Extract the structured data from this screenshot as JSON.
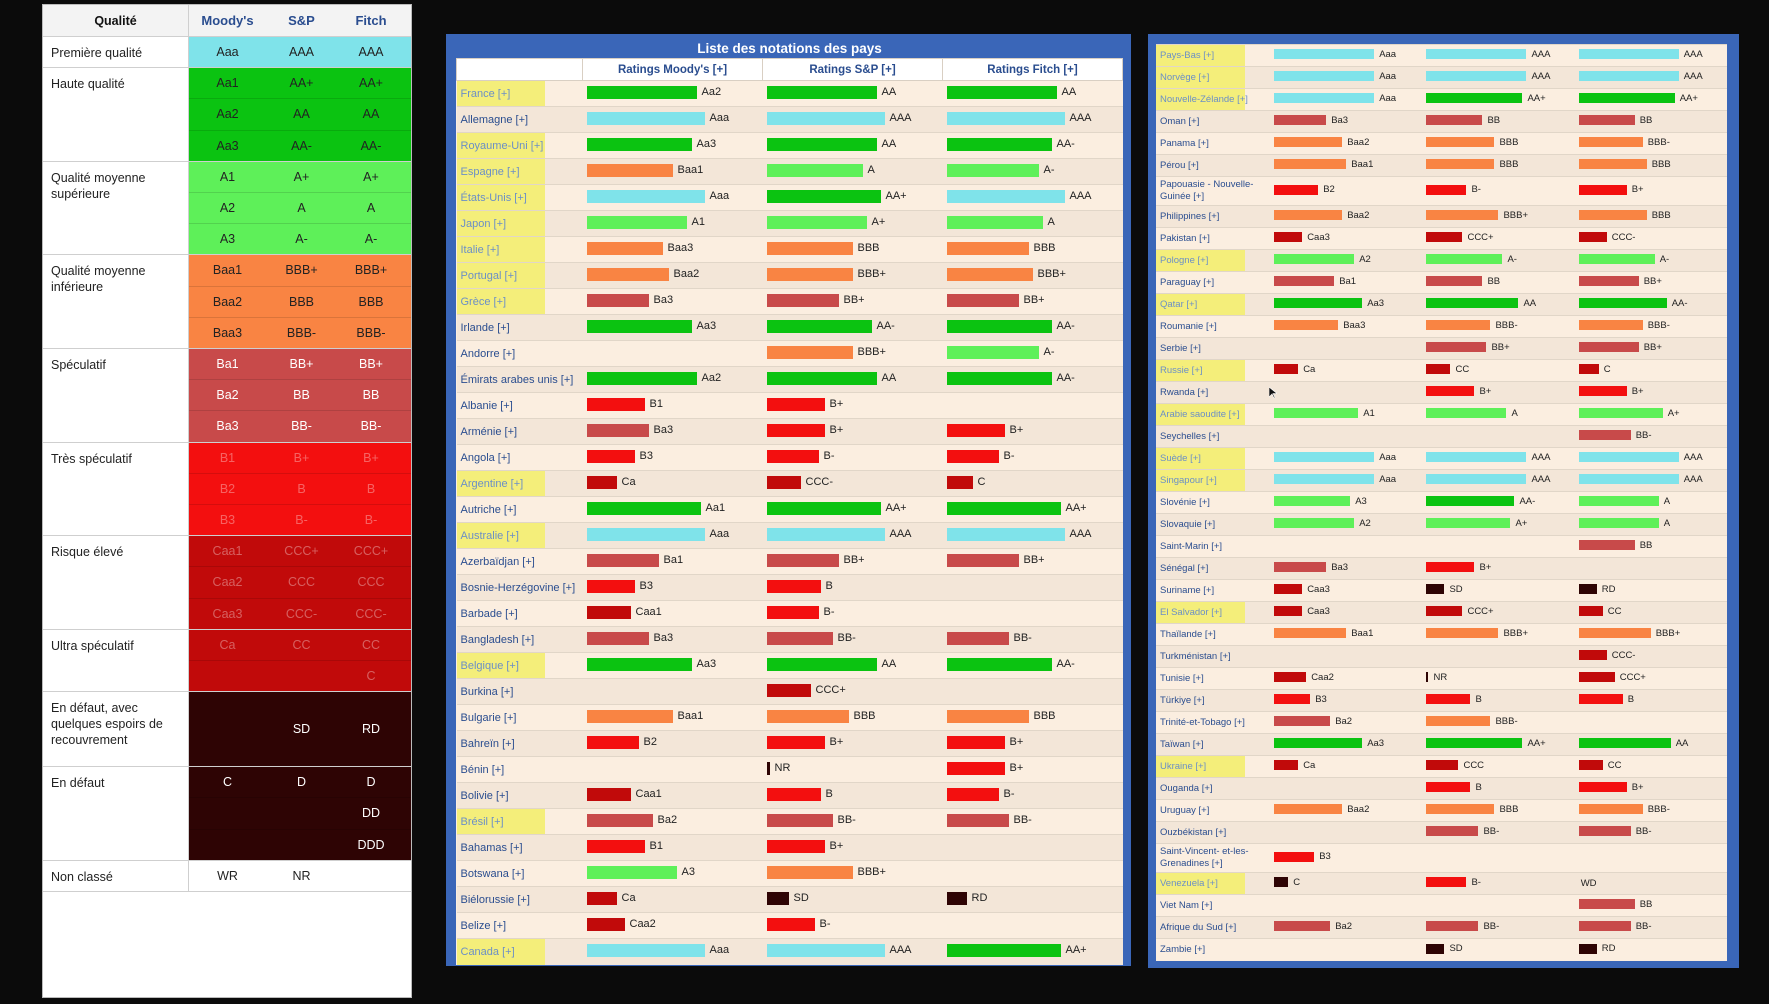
{
  "colors": {
    "aaa": "#7fe3ea",
    "aa": "#0bc311",
    "a": "#5ef059",
    "bbb": "#f98443",
    "bb": "#c84a4a",
    "b": "#f30f0f",
    "ccc": "#c10a0a",
    "sd": "#2e0404",
    "empty": ""
  },
  "legend": {
    "headers": [
      "Qualité",
      "Moody's",
      "S&P",
      "Fitch"
    ],
    "groups": [
      {
        "label": "Première qualité",
        "rows": [
          [
            "Aaa",
            "AAA",
            "AAA",
            "aaa",
            "d"
          ]
        ]
      },
      {
        "label": "Haute qualité",
        "rows": [
          [
            "Aa1",
            "AA+",
            "AA+",
            "aa",
            "d"
          ],
          [
            "Aa2",
            "AA",
            "AA",
            "aa",
            "d"
          ],
          [
            "Aa3",
            "AA-",
            "AA-",
            "aa",
            "d"
          ]
        ]
      },
      {
        "label": "Qualité moyenne supérieure",
        "rows": [
          [
            "A1",
            "A+",
            "A+",
            "a",
            "d"
          ],
          [
            "A2",
            "A",
            "A",
            "a",
            "d"
          ],
          [
            "A3",
            "A-",
            "A-",
            "a",
            "d"
          ]
        ]
      },
      {
        "label": "Qualité moyenne inférieure",
        "rows": [
          [
            "Baa1",
            "BBB+",
            "BBB+",
            "bbb",
            "d"
          ],
          [
            "Baa2",
            "BBB",
            "BBB",
            "bbb",
            "d"
          ],
          [
            "Baa3",
            "BBB-",
            "BBB-",
            "bbb",
            "d"
          ]
        ]
      },
      {
        "label": "Spéculatif",
        "rows": [
          [
            "Ba1",
            "BB+",
            "BB+",
            "bb",
            "l"
          ],
          [
            "Ba2",
            "BB",
            "BB",
            "bb",
            "l"
          ],
          [
            "Ba3",
            "BB-",
            "BB-",
            "bb",
            "l"
          ]
        ]
      },
      {
        "label": "Très spéculatif",
        "rows": [
          [
            "B1",
            "B+",
            "B+",
            "b",
            "f"
          ],
          [
            "B2",
            "B",
            "B",
            "b",
            "f"
          ],
          [
            "B3",
            "B-",
            "B-",
            "b",
            "f"
          ]
        ]
      },
      {
        "label": "Risque élevé",
        "rows": [
          [
            "Caa1",
            "CCC+",
            "CCC+",
            "ccc",
            "f"
          ],
          [
            "Caa2",
            "CCC",
            "CCC",
            "ccc",
            "f"
          ],
          [
            "Caa3",
            "CCC-",
            "CCC-",
            "ccc",
            "f"
          ]
        ]
      },
      {
        "label": "Ultra spéculatif",
        "rows": [
          [
            "Ca",
            "CC",
            "CC",
            "ccc",
            "f"
          ],
          [
            "",
            "",
            "C",
            "ccc",
            "f"
          ]
        ]
      },
      {
        "label": "En défaut, avec quelques espoirs de recouvrement",
        "rows": [
          [
            "",
            "SD",
            "RD",
            "sd",
            "l"
          ]
        ]
      },
      {
        "label": "En défaut",
        "rows": [
          [
            "C",
            "D",
            "D",
            "sd",
            "l"
          ],
          [
            "",
            "",
            "DD",
            "sd",
            "l"
          ],
          [
            "",
            "",
            "DDD",
            "sd",
            "l"
          ]
        ]
      },
      {
        "label": "Non classé",
        "rows": [
          [
            "WR",
            "NR",
            "",
            "white",
            "k"
          ]
        ]
      }
    ]
  },
  "mid": {
    "title": "Liste des notations des pays",
    "headers": [
      "",
      "Ratings Moody's [+]",
      "Ratings S&P [+]",
      "Ratings Fitch [+]"
    ],
    "rows": [
      [
        "France [+]",
        1,
        "Aa2",
        "aa",
        110,
        "AA",
        "aa",
        110,
        "AA",
        "aa",
        110
      ],
      [
        "Allemagne [+]",
        0,
        "Aaa",
        "aaa",
        118,
        "AAA",
        "aaa",
        118,
        "AAA",
        "aaa",
        118
      ],
      [
        "Royaume-Uni [+]",
        1,
        "Aa3",
        "aa",
        105,
        "AA",
        "aa",
        110,
        "AA-",
        "aa",
        105
      ],
      [
        "Espagne [+]",
        1,
        "Baa1",
        "bbb",
        86,
        "A",
        "a",
        96,
        "A-",
        "a",
        92
      ],
      [
        "États-Unis [+]",
        1,
        "Aaa",
        "aaa",
        118,
        "AA+",
        "aa",
        114,
        "AAA",
        "aaa",
        118
      ],
      [
        "Japon [+]",
        1,
        "A1",
        "a",
        100,
        "A+",
        "a",
        100,
        "A",
        "a",
        96
      ],
      [
        "Italie [+]",
        1,
        "Baa3",
        "bbb",
        76,
        "BBB",
        "bbb",
        86,
        "BBB",
        "bbb",
        82
      ],
      [
        "Portugal [+]",
        1,
        "Baa2",
        "bbb",
        82,
        "BBB+",
        "bbb",
        86,
        "BBB+",
        "bbb",
        86
      ],
      [
        "Grèce [+]",
        1,
        "Ba3",
        "bb",
        62,
        "BB+",
        "bb",
        72,
        "BB+",
        "bb",
        72
      ],
      [
        "Irlande [+]",
        0,
        "Aa3",
        "aa",
        105,
        "AA-",
        "aa",
        105,
        "AA-",
        "aa",
        105
      ],
      [
        "Andorre [+]",
        0,
        "",
        "empty",
        0,
        "BBB+",
        "bbb",
        86,
        "A-",
        "a",
        92
      ],
      [
        "Émirats arabes unis [+]",
        0,
        "Aa2",
        "aa",
        110,
        "AA",
        "aa",
        110,
        "AA-",
        "aa",
        105
      ],
      [
        "Albanie [+]",
        0,
        "B1",
        "b",
        58,
        "B+",
        "b",
        58,
        "",
        "empty",
        0
      ],
      [
        "Arménie [+]",
        0,
        "Ba3",
        "bb",
        62,
        "B+",
        "b",
        58,
        "B+",
        "b",
        58
      ],
      [
        "Angola [+]",
        0,
        "B3",
        "b",
        48,
        "B-",
        "b",
        52,
        "B-",
        "b",
        52
      ],
      [
        "Argentine [+]",
        1,
        "Ca",
        "ccc",
        30,
        "CCC-",
        "ccc",
        34,
        "C",
        "ccc",
        26
      ],
      [
        "Autriche [+]",
        0,
        "Aa1",
        "aa",
        114,
        "AA+",
        "aa",
        114,
        "AA+",
        "aa",
        114
      ],
      [
        "Australie [+]",
        1,
        "Aaa",
        "aaa",
        118,
        "AAA",
        "aaa",
        118,
        "AAA",
        "aaa",
        118
      ],
      [
        "Azerbaïdjan [+]",
        0,
        "Ba1",
        "bb",
        72,
        "BB+",
        "bb",
        72,
        "BB+",
        "bb",
        72
      ],
      [
        "Bosnie-Herzégovine [+]",
        0,
        "B3",
        "b",
        48,
        "B",
        "b",
        54,
        "",
        "empty",
        0
      ],
      [
        "Barbade [+]",
        0,
        "Caa1",
        "ccc",
        44,
        "B-",
        "b",
        52,
        "",
        "empty",
        0
      ],
      [
        "Bangladesh [+]",
        0,
        "Ba3",
        "bb",
        62,
        "BB-",
        "bb",
        66,
        "BB-",
        "bb",
        62
      ],
      [
        "Belgique [+]",
        1,
        "Aa3",
        "aa",
        105,
        "AA",
        "aa",
        110,
        "AA-",
        "aa",
        105
      ],
      [
        "Burkina [+]",
        0,
        "",
        "empty",
        0,
        "CCC+",
        "ccc",
        44,
        "",
        "empty",
        0
      ],
      [
        "Bulgarie [+]",
        0,
        "Baa1",
        "bbb",
        86,
        "BBB",
        "bbb",
        82,
        "BBB",
        "bbb",
        82
      ],
      [
        "Bahreïn [+]",
        0,
        "B2",
        "b",
        52,
        "B+",
        "b",
        58,
        "B+",
        "b",
        58
      ],
      [
        "Bénin [+]",
        0,
        "",
        "empty",
        0,
        "NR",
        "sd",
        3,
        "B+",
        "b",
        58
      ],
      [
        "Bolivie [+]",
        0,
        "Caa1",
        "ccc",
        44,
        "B",
        "b",
        54,
        "B-",
        "b",
        52
      ],
      [
        "Brésil [+]",
        1,
        "Ba2",
        "bb",
        66,
        "BB-",
        "bb",
        66,
        "BB-",
        "bb",
        62
      ],
      [
        "Bahamas [+]",
        0,
        "B1",
        "b",
        58,
        "B+",
        "b",
        58,
        "",
        "empty",
        0
      ],
      [
        "Botswana [+]",
        0,
        "A3",
        "a",
        90,
        "BBB+",
        "bbb",
        86,
        "",
        "empty",
        0
      ],
      [
        "Biélorussie [+]",
        0,
        "Ca",
        "ccc",
        30,
        "SD",
        "sd",
        22,
        "RD",
        "sd",
        20
      ],
      [
        "Belize [+]",
        0,
        "Caa2",
        "ccc",
        38,
        "B-",
        "b",
        48,
        "",
        "empty",
        0
      ],
      [
        "Canada [+]",
        1,
        "Aaa",
        "aaa",
        118,
        "AAA",
        "aaa",
        118,
        "AA+",
        "aa",
        114
      ]
    ]
  },
  "right": {
    "rows": [
      [
        "Pays-Bas [+]",
        1,
        "Aaa",
        "aaa",
        100,
        "AAA",
        "aaa",
        100,
        "AAA",
        "aaa",
        100,
        0
      ],
      [
        "Norvège [+]",
        1,
        "Aaa",
        "aaa",
        100,
        "AAA",
        "aaa",
        100,
        "AAA",
        "aaa",
        100,
        0
      ],
      [
        "Nouvelle-Zélande [+]",
        1,
        "Aaa",
        "aaa",
        100,
        "AA+",
        "aa",
        96,
        "AA+",
        "aa",
        96,
        0
      ],
      [
        "Oman [+]",
        0,
        "Ba3",
        "bb",
        52,
        "BB",
        "bb",
        56,
        "BB",
        "bb",
        56,
        0
      ],
      [
        "Panama [+]",
        0,
        "Baa2",
        "bbb",
        68,
        "BBB",
        "bbb",
        68,
        "BBB-",
        "bbb",
        64,
        0
      ],
      [
        "Pérou [+]",
        0,
        "Baa1",
        "bbb",
        72,
        "BBB",
        "bbb",
        68,
        "BBB",
        "bbb",
        68,
        0
      ],
      [
        "Papouasie - Nouvelle-Guinée [+]",
        0,
        "B2",
        "b",
        44,
        "B-",
        "b",
        40,
        "B+",
        "b",
        48,
        1
      ],
      [
        "Philippines [+]",
        0,
        "Baa2",
        "bbb",
        68,
        "BBB+",
        "bbb",
        72,
        "BBB",
        "bbb",
        68,
        0
      ],
      [
        "Pakistan [+]",
        0,
        "Caa3",
        "ccc",
        28,
        "CCC+",
        "ccc",
        36,
        "CCC-",
        "ccc",
        28,
        0
      ],
      [
        "Pologne [+]",
        1,
        "A2",
        "a",
        80,
        "A-",
        "a",
        76,
        "A-",
        "a",
        76,
        0
      ],
      [
        "Paraguay [+]",
        0,
        "Ba1",
        "bb",
        60,
        "BB",
        "bb",
        56,
        "BB+",
        "bb",
        60,
        0
      ],
      [
        "Qatar [+]",
        1,
        "Aa3",
        "aa",
        88,
        "AA",
        "aa",
        92,
        "AA-",
        "aa",
        88,
        0
      ],
      [
        "Roumanie [+]",
        0,
        "Baa3",
        "bbb",
        64,
        "BBB-",
        "bbb",
        64,
        "BBB-",
        "bbb",
        64,
        0
      ],
      [
        "Serbie [+]",
        0,
        "",
        "empty",
        0,
        "BB+",
        "bb",
        60,
        "BB+",
        "bb",
        60,
        0
      ],
      [
        "Russie [+]",
        1,
        "Ca",
        "ccc",
        24,
        "CC",
        "ccc",
        24,
        "C",
        "ccc",
        20,
        0
      ],
      [
        "Rwanda [+]",
        0,
        "",
        "empty",
        0,
        "B+",
        "b",
        48,
        "B+",
        "b",
        48,
        0
      ],
      [
        "Arabie saoudite [+]",
        1,
        "A1",
        "a",
        84,
        "A",
        "a",
        80,
        "A+",
        "a",
        84,
        0
      ],
      [
        "Seychelles [+]",
        0,
        "",
        "empty",
        0,
        "",
        "empty",
        0,
        "BB-",
        "bb",
        52,
        0
      ],
      [
        "Suède [+]",
        1,
        "Aaa",
        "aaa",
        100,
        "AAA",
        "aaa",
        100,
        "AAA",
        "aaa",
        100,
        0
      ],
      [
        "Singapour [+]",
        1,
        "Aaa",
        "aaa",
        100,
        "AAA",
        "aaa",
        100,
        "AAA",
        "aaa",
        100,
        0
      ],
      [
        "Slovénie [+]",
        0,
        "A3",
        "a",
        76,
        "AA-",
        "aa",
        88,
        "A",
        "a",
        80,
        0
      ],
      [
        "Slovaquie [+]",
        0,
        "A2",
        "a",
        80,
        "A+",
        "a",
        84,
        "A",
        "a",
        80,
        0
      ],
      [
        "Saint-Marin [+]",
        0,
        "",
        "empty",
        0,
        "",
        "empty",
        0,
        "BB",
        "bb",
        56,
        0
      ],
      [
        "Sénégal [+]",
        0,
        "Ba3",
        "bb",
        52,
        "B+",
        "b",
        48,
        "",
        "empty",
        0,
        0
      ],
      [
        "Suriname [+]",
        0,
        "Caa3",
        "ccc",
        28,
        "SD",
        "sd",
        18,
        "RD",
        "sd",
        18,
        0
      ],
      [
        "El Salvador [+]",
        1,
        "Caa3",
        "ccc",
        28,
        "CCC+",
        "ccc",
        36,
        "CC",
        "ccc",
        24,
        0
      ],
      [
        "Thaïlande [+]",
        0,
        "Baa1",
        "bbb",
        72,
        "BBB+",
        "bbb",
        72,
        "BBB+",
        "bbb",
        72,
        0
      ],
      [
        "Turkménistan [+]",
        0,
        "",
        "empty",
        0,
        "",
        "empty",
        0,
        "CCC-",
        "ccc",
        28,
        0
      ],
      [
        "Tunisie [+]",
        0,
        "Caa2",
        "ccc",
        32,
        "NR",
        "sd",
        2,
        "CCC+",
        "ccc",
        36,
        0
      ],
      [
        "Türkiye [+]",
        0,
        "B3",
        "b",
        36,
        "B",
        "b",
        44,
        "B",
        "b",
        44,
        0
      ],
      [
        "Trinité-et-Tobago [+]",
        0,
        "Ba2",
        "bb",
        56,
        "BBB-",
        "bbb",
        64,
        "",
        "empty",
        0,
        0
      ],
      [
        "Taïwan [+]",
        0,
        "Aa3",
        "aa",
        88,
        "AA+",
        "aa",
        96,
        "AA",
        "aa",
        92,
        0
      ],
      [
        "Ukraine [+]",
        1,
        "Ca",
        "ccc",
        24,
        "CCC",
        "ccc",
        32,
        "CC",
        "ccc",
        24,
        0
      ],
      [
        "Ouganda [+]",
        0,
        "",
        "empty",
        0,
        "B",
        "b",
        44,
        "B+",
        "b",
        48,
        0
      ],
      [
        "Uruguay [+]",
        0,
        "Baa2",
        "bbb",
        68,
        "BBB",
        "bbb",
        68,
        "BBB-",
        "bbb",
        64,
        0
      ],
      [
        "Ouzbékistan [+]",
        0,
        "",
        "empty",
        0,
        "BB-",
        "bb",
        52,
        "BB-",
        "bb",
        52,
        0
      ],
      [
        "Saint-Vincent- et-les-Grenadines [+]",
        0,
        "B3",
        "b",
        40,
        "",
        "empty",
        0,
        "",
        "empty",
        0,
        1
      ],
      [
        "Venezuela [+]",
        1,
        "C",
        "sd",
        14,
        "B-",
        "b",
        40,
        "WD",
        "empty",
        0,
        0
      ],
      [
        "Viet Nam [+]",
        0,
        "",
        "empty",
        0,
        "",
        "empty",
        0,
        "BB",
        "bb",
        56,
        0
      ],
      [
        "Afrique du Sud [+]",
        0,
        "Ba2",
        "bb",
        56,
        "BB-",
        "bb",
        52,
        "BB-",
        "bb",
        52,
        0
      ],
      [
        "Zambie [+]",
        0,
        "",
        "empty",
        0,
        "SD",
        "sd",
        18,
        "RD",
        "sd",
        18,
        0
      ]
    ]
  }
}
